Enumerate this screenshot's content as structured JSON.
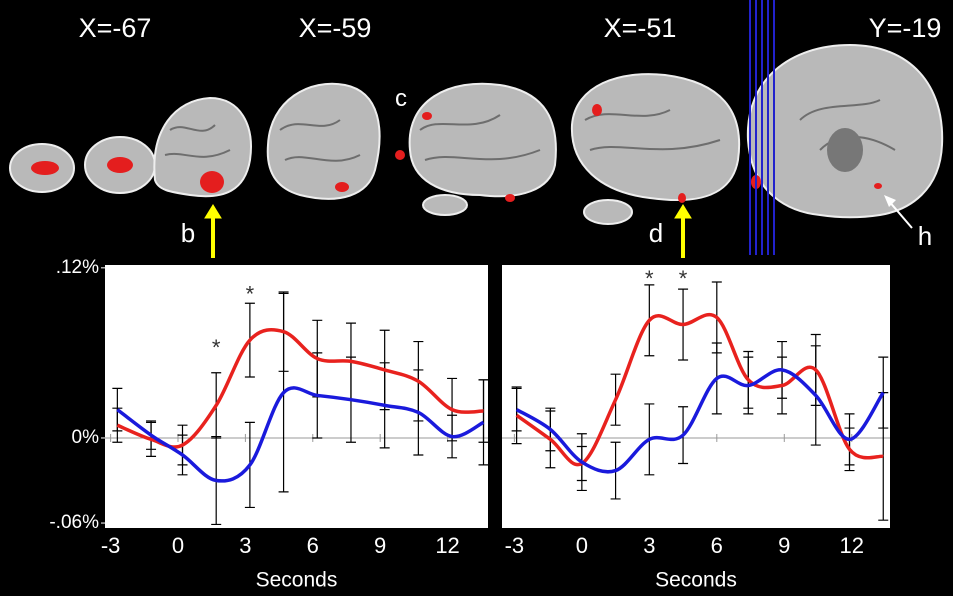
{
  "brain_labels": [
    "X=-67",
    "X=-59",
    "X=-51",
    "Y=-19"
  ],
  "markers": [
    "b",
    "c",
    "d",
    "h"
  ],
  "chart_data": [
    {
      "type": "line",
      "xlabel": "Seconds",
      "x": [
        -2.7,
        -1.2,
        0.2,
        1.7,
        3.2,
        4.7,
        6.2,
        7.7,
        9.2,
        10.7,
        12.2,
        13.6
      ],
      "series": [
        {
          "color": "#e8221e",
          "values": [
            0.009,
            -0.001,
            -0.005,
            0.023,
            0.069,
            0.075,
            0.056,
            0.054,
            0.048,
            0.04,
            0.02,
            0.019
          ],
          "errors": [
            0.012,
            0.012,
            0.014,
            0.023,
            0.026,
            0.028,
            0.027,
            0.027,
            0.028,
            0.028,
            0.022,
            0.022
          ]
        },
        {
          "color": "#1a1adc",
          "values": [
            0.02,
            0.002,
            -0.012,
            -0.03,
            -0.019,
            0.032,
            0.03,
            0.027,
            0.023,
            0.018,
            0.001,
            0.011
          ],
          "errors": [
            0.015,
            0.01,
            0.014,
            0.031,
            0.03,
            0.07,
            0.03,
            0.03,
            0.03,
            0.03,
            0.015,
            0.03
          ]
        }
      ],
      "xlim": [
        -3.25,
        13.8
      ],
      "ylim": [
        -0.0635,
        0.122
      ],
      "xticks": [
        -3,
        0,
        3,
        6,
        9,
        12
      ],
      "yticks": [
        {
          "value": 0.12,
          "label": ".12%"
        },
        {
          "value": 0,
          "label": "0%"
        },
        {
          "value": -0.06,
          "label": "-.06%"
        }
      ],
      "hline": 0,
      "annotations": [
        {
          "text": "*",
          "x": 1.7,
          "y": 0.064
        },
        {
          "text": "*",
          "x": 3.2,
          "y": 0.102
        }
      ]
    },
    {
      "type": "line",
      "xlabel": "Seconds",
      "x": [
        -2.9,
        -1.4,
        0,
        1.5,
        3,
        4.5,
        6,
        7.4,
        8.9,
        10.4,
        11.9,
        13.4
      ],
      "series": [
        {
          "color": "#e8221e",
          "values": [
            0.016,
            -0.001,
            -0.018,
            0.027,
            0.083,
            0.08,
            0.085,
            0.041,
            0.037,
            0.048,
            -0.008,
            -0.013
          ],
          "errors": [
            0.02,
            0.02,
            0.012,
            0.018,
            0.025,
            0.025,
            0.025,
            0.02,
            0.02,
            0.025,
            0.015,
            0.045
          ]
        },
        {
          "color": "#1a1adc",
          "values": [
            0.02,
            0.006,
            -0.017,
            -0.023,
            -0.001,
            0.002,
            0.042,
            0.037,
            0.048,
            0.03,
            -0.001,
            0.032
          ],
          "errors": [
            0.015,
            0.015,
            0.02,
            0.02,
            0.025,
            0.02,
            0.025,
            0.02,
            0.02,
            0.035,
            0.018,
            0.025
          ]
        }
      ],
      "xlim": [
        -3.55,
        13.7
      ],
      "ylim": [
        -0.0635,
        0.122
      ],
      "xticks": [
        -3,
        0,
        3,
        6,
        9,
        12
      ],
      "hline": 0,
      "annotations": [
        {
          "text": "*",
          "x": 3,
          "y": 0.113
        },
        {
          "text": "*",
          "x": 4.5,
          "y": 0.113
        }
      ]
    }
  ]
}
